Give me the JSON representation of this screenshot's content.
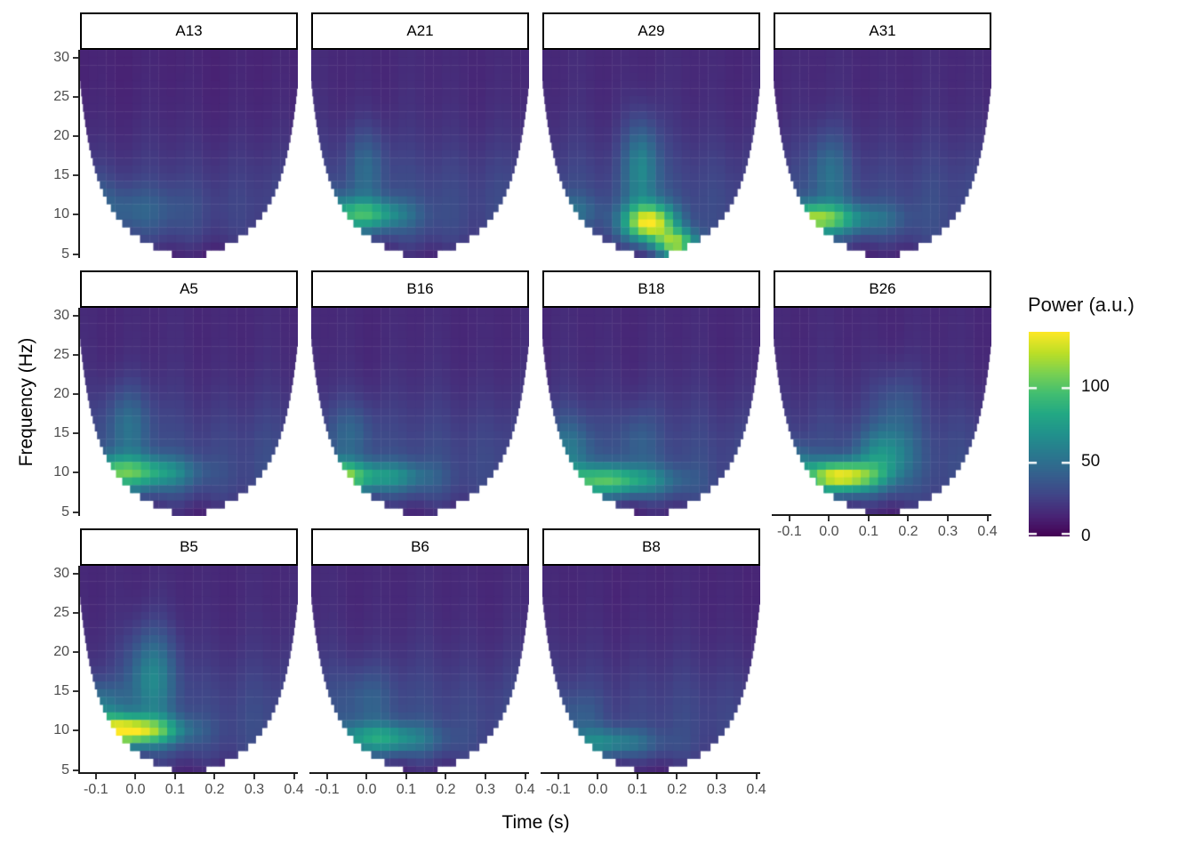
{
  "chart_data": {
    "type": "heatmap",
    "title": "",
    "xlabel": "Time (s)",
    "ylabel": "Frequency (Hz)",
    "x_ticks": {
      "values": [
        -0.1,
        0.0,
        0.1,
        0.2,
        0.3,
        0.4
      ],
      "labels": [
        "-0.1",
        "0.0",
        "0.1",
        "0.2",
        "0.3",
        "0.4"
      ]
    },
    "y_ticks": {
      "values": [
        5,
        10,
        15,
        20,
        25,
        30
      ],
      "labels": [
        "5",
        "10",
        "15",
        "20",
        "25",
        "30"
      ]
    },
    "x_range": [
      -0.14,
      0.41
    ],
    "y_range": [
      4.5,
      31
    ],
    "grid": {
      "ncol": 4,
      "nrow": 3
    },
    "legend": {
      "title": "Power (a.u.)",
      "tick_values": [
        0,
        50,
        100
      ],
      "tick_labels": [
        "0",
        "50",
        "100"
      ],
      "domain": [
        0,
        137
      ],
      "position": "right"
    },
    "colormap": {
      "name": "viridis",
      "stops": [
        {
          "p": 0.0,
          "c": "#440154"
        },
        {
          "p": 0.1,
          "c": "#482475"
        },
        {
          "p": 0.2,
          "c": "#414487"
        },
        {
          "p": 0.3,
          "c": "#355f8d"
        },
        {
          "p": 0.4,
          "c": "#2a788e"
        },
        {
          "p": 0.5,
          "c": "#21918c"
        },
        {
          "p": 0.6,
          "c": "#22a884"
        },
        {
          "p": 0.7,
          "c": "#42be71"
        },
        {
          "p": 0.8,
          "c": "#7ad151"
        },
        {
          "p": 0.9,
          "c": "#bddf26"
        },
        {
          "p": 1.0,
          "c": "#fde725"
        }
      ]
    },
    "cone_of_influence": {
      "k": 2.58,
      "full_width_above_hz": 27
    },
    "base_field": {
      "offset": 16,
      "alpha_amp": 14,
      "alpha_center": 11,
      "alpha_width": 9,
      "bottom_dark": -9,
      "bottom_center": 4.6,
      "bottom_width": 1.8,
      "streak_amp": 2.5
    },
    "facets": [
      {
        "label": "A13",
        "row": 0,
        "col": 0,
        "base_scale": 0.88,
        "hotspots": [
          {
            "t": -0.02,
            "f": 10.5,
            "st": 0.16,
            "sf": 3.0,
            "amp": 20
          },
          {
            "t": -0.12,
            "f": 13.0,
            "st": 0.06,
            "sf": 3.0,
            "amp": 10
          }
        ]
      },
      {
        "label": "A21",
        "row": 0,
        "col": 1,
        "base_scale": 1.0,
        "hotspots": [
          {
            "t": -0.01,
            "f": 10.0,
            "st": 0.11,
            "sf": 2.0,
            "amp": 62
          },
          {
            "t": 0.0,
            "f": 16.0,
            "st": 0.05,
            "sf": 5.0,
            "amp": 22
          },
          {
            "t": -0.12,
            "f": 11.0,
            "st": 0.06,
            "sf": 2.5,
            "amp": 22
          }
        ]
      },
      {
        "label": "A29",
        "row": 0,
        "col": 2,
        "base_scale": 1.0,
        "hotspots": [
          {
            "t": 0.13,
            "f": 9.0,
            "st": 0.065,
            "sf": 2.3,
            "amp": 105
          },
          {
            "t": 0.2,
            "f": 6.2,
            "st": 0.055,
            "sf": 1.8,
            "amp": 85
          },
          {
            "t": 0.11,
            "f": 16.0,
            "st": 0.045,
            "sf": 6.0,
            "amp": 40
          },
          {
            "t": -0.08,
            "f": 10.5,
            "st": 0.08,
            "sf": 2.0,
            "amp": 22
          }
        ]
      },
      {
        "label": "A31",
        "row": 0,
        "col": 3,
        "base_scale": 1.0,
        "hotspots": [
          {
            "t": -0.04,
            "f": 9.5,
            "st": 0.1,
            "sf": 1.9,
            "amp": 88
          },
          {
            "t": 0.0,
            "f": 15.5,
            "st": 0.05,
            "sf": 5.0,
            "amp": 24
          },
          {
            "t": 0.12,
            "f": 9.5,
            "st": 0.08,
            "sf": 2.0,
            "amp": 20
          }
        ]
      },
      {
        "label": "A5",
        "row": 1,
        "col": 0,
        "base_scale": 1.0,
        "hotspots": [
          {
            "t": -0.06,
            "f": 10.0,
            "st": 0.11,
            "sf": 2.1,
            "amp": 65
          },
          {
            "t": 0.07,
            "f": 10.0,
            "st": 0.1,
            "sf": 2.0,
            "amp": 32
          },
          {
            "t": -0.02,
            "f": 16.0,
            "st": 0.06,
            "sf": 5.0,
            "amp": 25
          }
        ]
      },
      {
        "label": "B16",
        "row": 1,
        "col": 1,
        "base_scale": 1.0,
        "hotspots": [
          {
            "t": -0.1,
            "f": 9.5,
            "st": 0.09,
            "sf": 1.9,
            "amp": 92
          },
          {
            "t": 0.05,
            "f": 9.5,
            "st": 0.11,
            "sf": 1.9,
            "amp": 40
          },
          {
            "t": -0.04,
            "f": 15.0,
            "st": 0.06,
            "sf": 4.0,
            "amp": 18
          }
        ]
      },
      {
        "label": "B18",
        "row": 1,
        "col": 2,
        "base_scale": 1.0,
        "hotspots": [
          {
            "t": 0.02,
            "f": 9.0,
            "st": 0.15,
            "sf": 1.9,
            "amp": 70
          },
          {
            "t": -0.07,
            "f": 13.0,
            "st": 0.06,
            "sf": 4.0,
            "amp": 25
          },
          {
            "t": 0.1,
            "f": 14.0,
            "st": 0.05,
            "sf": 4.0,
            "amp": 15
          }
        ]
      },
      {
        "label": "B26",
        "row": 1,
        "col": 3,
        "x_axis": true,
        "base_scale": 1.0,
        "hotspots": [
          {
            "t": 0.03,
            "f": 9.5,
            "st": 0.095,
            "sf": 1.9,
            "amp": 105
          },
          {
            "t": 0.14,
            "f": 12.0,
            "st": 0.07,
            "sf": 3.5,
            "amp": 40
          },
          {
            "t": -0.09,
            "f": 11.0,
            "st": 0.05,
            "sf": 2.5,
            "amp": 30
          },
          {
            "t": 0.17,
            "f": 18.0,
            "st": 0.06,
            "sf": 5.0,
            "amp": 18
          }
        ]
      },
      {
        "label": "B5",
        "row": 2,
        "col": 0,
        "x_axis": true,
        "base_scale": 1.0,
        "hotspots": [
          {
            "t": -0.03,
            "f": 10.0,
            "st": 0.13,
            "sf": 1.8,
            "amp": 112
          },
          {
            "t": 0.04,
            "f": 17.0,
            "st": 0.06,
            "sf": 6.0,
            "amp": 38
          },
          {
            "t": -0.1,
            "f": 13.0,
            "st": 0.07,
            "sf": 3.0,
            "amp": 30
          }
        ]
      },
      {
        "label": "B6",
        "row": 2,
        "col": 1,
        "x_axis": true,
        "base_scale": 1.0,
        "hotspots": [
          {
            "t": 0.03,
            "f": 9.0,
            "st": 0.13,
            "sf": 1.9,
            "amp": 52
          },
          {
            "t": 0.0,
            "f": 14.0,
            "st": 0.07,
            "sf": 4.0,
            "amp": 15
          }
        ]
      },
      {
        "label": "B8",
        "row": 2,
        "col": 2,
        "x_axis": true,
        "base_scale": 0.95,
        "hotspots": [
          {
            "t": 0.02,
            "f": 8.5,
            "st": 0.12,
            "sf": 1.8,
            "amp": 40
          },
          {
            "t": -0.05,
            "f": 12.0,
            "st": 0.06,
            "sf": 3.0,
            "amp": 12
          }
        ]
      }
    ]
  },
  "colors": {
    "background": "#ffffff",
    "panel_bg": "#ffffff",
    "strip_bg": "#ffffff",
    "strip_border": "#000000",
    "axis_line": "#1a1a1a",
    "tick_mark": "#333333",
    "tick_text": "#4d4d4d",
    "title_text": "#000000"
  }
}
